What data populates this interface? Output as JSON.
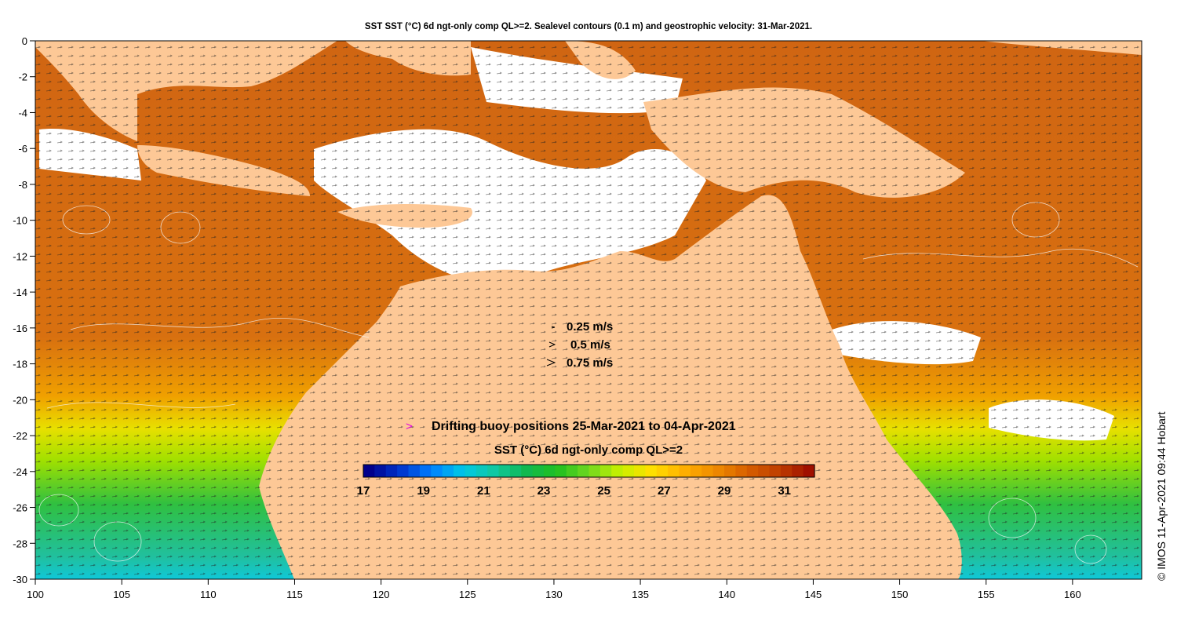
{
  "title": "SST SST (°C) 6d ngt-only comp QL>=2. Sealevel contours (0.1 m) and geostrophic velocity: 31-Mar-2021.",
  "credit": "© IMOS 11-Apr-2021 09:44 Hobart",
  "axes": {
    "lon_ticks": [
      "100",
      "105",
      "110",
      "115",
      "120",
      "125",
      "130",
      "135",
      "140",
      "145",
      "150",
      "155",
      "160"
    ],
    "lat_ticks": [
      "0",
      "-2",
      "-4",
      "-6",
      "-8",
      "-10",
      "-12",
      "-14",
      "-16",
      "-18",
      "-20",
      "-22",
      "-24",
      "-26",
      "-28",
      "-30"
    ],
    "lon_range": [
      100,
      164
    ],
    "lat_range": [
      -30,
      0
    ]
  },
  "velocity_key": {
    "items": [
      "0.25 m/s",
      "0.5 m/s",
      "0.75 m/s"
    ]
  },
  "buoy_legend": {
    "marker": ">",
    "text": "Drifting buoy positions 25-Mar-2021 to 04-Apr-2021",
    "color": "#e000e0"
  },
  "colorbar": {
    "title": "SST (°C) 6d ngt-only comp QL>=2",
    "range": [
      17,
      32
    ],
    "ticks": [
      "17",
      "19",
      "21",
      "23",
      "25",
      "27",
      "29",
      "31"
    ],
    "colors": [
      "#00008b",
      "#0033cc",
      "#0080ff",
      "#00c8e6",
      "#10c8a0",
      "#10b850",
      "#20c020",
      "#70d820",
      "#c8f000",
      "#ffe000",
      "#ffb000",
      "#f08c00",
      "#d86000",
      "#c04000",
      "#a01000"
    ]
  },
  "colors": {
    "land": "#fdc896",
    "sst_warm": "#d4690f",
    "sst_hot": "#c6580c",
    "cloud": "#ffffff"
  }
}
